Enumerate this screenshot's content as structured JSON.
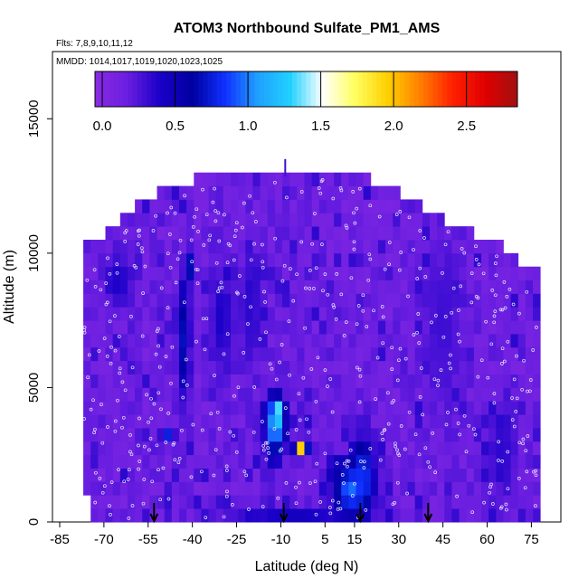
{
  "chart_data": {
    "type": "heatmap",
    "title": "ATOM3 Northbound Sulfate_PM1_AMS",
    "flights_note": "Flts: 7,8,9,10,11,12",
    "dates_note": "MMDD: 1014,1017,1019,1020,1023,1025",
    "xlabel": "Latitude (deg N)",
    "ylabel": "Altitude (m)",
    "xlim": [
      -85,
      85
    ],
    "ylim": [
      0,
      17500
    ],
    "x_ticks": [
      -85,
      -70,
      -55,
      -40,
      -25,
      -10,
      5,
      15,
      30,
      45,
      60,
      75
    ],
    "y_ticks": [
      0,
      5000,
      10000,
      15000
    ],
    "colorbar": {
      "range": [
        -0.05,
        2.85
      ],
      "ticks": [
        0.0,
        0.5,
        1.0,
        1.5,
        2.0,
        2.5
      ],
      "tick_labels": [
        "0.0",
        "0.5",
        "1.0",
        "1.5",
        "2.0",
        "2.5"
      ],
      "colors": [
        "#8a2be2",
        "#6a1ee0",
        "#1a00c8",
        "#0000a0",
        "#1030ff",
        "#20a0ff",
        "#20d0ff",
        "#ffffff",
        "#ffff60",
        "#ffd000",
        "#ff8000",
        "#ff2000",
        "#e00000",
        "#a01010"
      ]
    },
    "background_value": 0.15,
    "coverage": {
      "lat_start": -77,
      "lat_end": 77,
      "lat_step": 2.5,
      "alt_step": 500,
      "ceiling_points": [
        [
          -77,
          10200
        ],
        [
          -70,
          10500
        ],
        [
          -60,
          11500
        ],
        [
          -50,
          12200
        ],
        [
          -35,
          12600
        ],
        [
          -25,
          13000
        ],
        [
          -5,
          13000
        ],
        [
          15,
          12800
        ],
        [
          30,
          12000
        ],
        [
          45,
          11100
        ],
        [
          55,
          10500
        ],
        [
          65,
          10000
        ],
        [
          77,
          9000
        ]
      ],
      "floor_points": [
        [
          -77,
          1500
        ],
        [
          -74,
          500
        ],
        [
          -72,
          0
        ],
        [
          77,
          0
        ]
      ]
    },
    "features": [
      {
        "lat": -12,
        "alt": 3500,
        "lat_width": 5,
        "alt_width": 1700,
        "value": 1.1
      },
      {
        "lat": -11,
        "alt": 4100,
        "lat_width": 3,
        "alt_width": 700,
        "value": 1.4
      },
      {
        "lat": -3,
        "alt": 2800,
        "lat_width": 3,
        "alt_width": 400,
        "value": 2.05
      },
      {
        "lat": 14,
        "alt": 1200,
        "lat_width": 9,
        "alt_width": 1500,
        "value": 1.0
      },
      {
        "lat": 18,
        "alt": 1800,
        "lat_width": 5,
        "alt_width": 2000,
        "value": 0.85
      },
      {
        "lat": -43,
        "alt": 6800,
        "lat_width": 3,
        "alt_width": 3000,
        "value": 0.7
      },
      {
        "lat": -41,
        "alt": 9500,
        "lat_width": 2,
        "alt_width": 600,
        "value": 0.9
      },
      {
        "lat": -48,
        "alt": 3200,
        "lat_width": 3,
        "alt_width": 400,
        "value": 0.8
      },
      {
        "lat": -30,
        "alt": 7500,
        "lat_width": 6,
        "alt_width": 3000,
        "value": 0.4
      },
      {
        "lat": -20,
        "alt": 8000,
        "lat_width": 6,
        "alt_width": 3500,
        "value": 0.35
      },
      {
        "lat": 45,
        "alt": 7500,
        "lat_width": 10,
        "alt_width": 4500,
        "value": 0.3
      },
      {
        "lat": 65,
        "alt": 2500,
        "lat_width": 8,
        "alt_width": 2500,
        "value": 0.35
      },
      {
        "lat": -65,
        "alt": 9000,
        "lat_width": 8,
        "alt_width": 1500,
        "value": 0.4
      },
      {
        "lat": -5,
        "alt": 300,
        "lat_width": 30,
        "alt_width": 500,
        "value": 0.45
      }
    ],
    "arrows_lat": [
      -53,
      -9,
      17,
      40
    ],
    "summit_marker": {
      "lat": -8.5,
      "alt_bottom": 12850,
      "alt_top": 13500
    },
    "n_sample_points": 520
  }
}
